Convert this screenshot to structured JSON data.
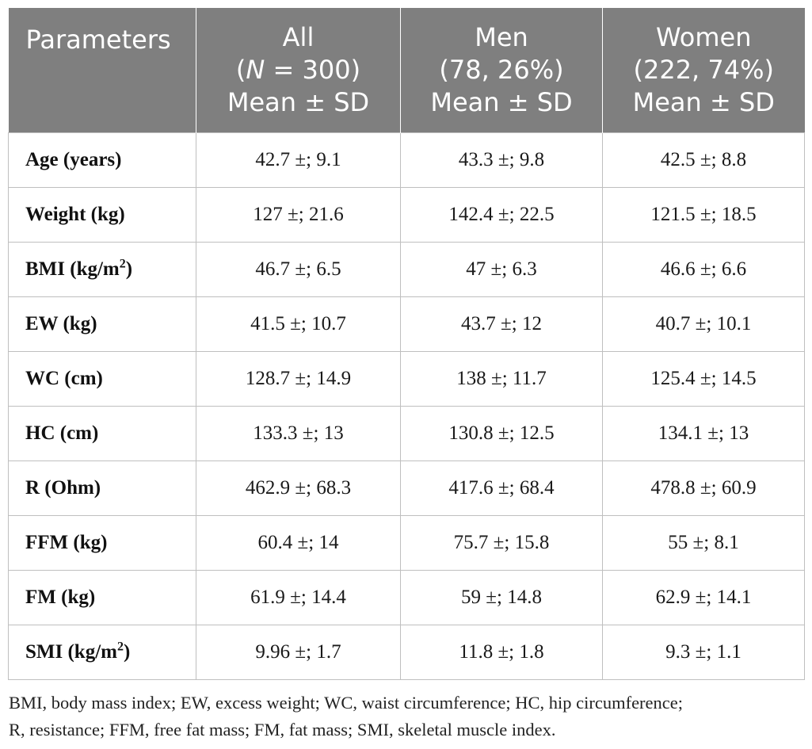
{
  "table": {
    "header": {
      "parameters": "Parameters",
      "all": {
        "line1": "All",
        "line2_prefix": "(",
        "line2_n": "N",
        "line2_rest": " = 300)",
        "line3": "Mean ± SD"
      },
      "men": {
        "line1": "Men",
        "line2": "(78, 26%)",
        "line3": "Mean ± SD"
      },
      "women": {
        "line1": "Women",
        "line2": "(222, 74%)",
        "line3": "Mean ± SD"
      }
    },
    "rows": [
      {
        "label": "Age (years)",
        "sup": "",
        "label_after": "",
        "all": "42.7 ±; 9.1",
        "men": "43.3 ±; 9.8",
        "women": "42.5 ±; 8.8"
      },
      {
        "label": "Weight (kg)",
        "sup": "",
        "label_after": "",
        "all": "127 ±; 21.6",
        "men": "142.4 ±; 22.5",
        "women": "121.5 ±; 18.5"
      },
      {
        "label": "BMI (kg/m",
        "sup": "2",
        "label_after": ")",
        "all": "46.7 ±; 6.5",
        "men": "47 ±; 6.3",
        "women": "46.6 ±; 6.6"
      },
      {
        "label": "EW (kg)",
        "sup": "",
        "label_after": "",
        "all": "41.5 ±; 10.7",
        "men": "43.7 ±; 12",
        "women": "40.7 ±; 10.1"
      },
      {
        "label": "WC (cm)",
        "sup": "",
        "label_after": "",
        "all": "128.7 ±; 14.9",
        "men": "138 ±; 11.7",
        "women": "125.4 ±; 14.5"
      },
      {
        "label": "HC (cm)",
        "sup": "",
        "label_after": "",
        "all": "133.3 ±; 13",
        "men": "130.8 ±; 12.5",
        "women": "134.1 ±; 13"
      },
      {
        "label": "R (Ohm)",
        "sup": "",
        "label_after": "",
        "all": "462.9 ±; 68.3",
        "men": "417.6 ±; 68.4",
        "women": "478.8 ±; 60.9"
      },
      {
        "label": "FFM (kg)",
        "sup": "",
        "label_after": "",
        "all": "60.4 ±; 14",
        "men": "75.7 ±; 15.8",
        "women": "55 ±; 8.1"
      },
      {
        "label": "FM (kg)",
        "sup": "",
        "label_after": "",
        "all": "61.9 ±; 14.4",
        "men": "59 ±; 14.8",
        "women": "62.9 ±; 14.1"
      },
      {
        "label": "SMI (kg/m",
        "sup": "2",
        "label_after": ")",
        "all": "9.96 ±; 1.7",
        "men": "11.8 ±; 1.8",
        "women": "9.3 ±; 1.1"
      }
    ]
  },
  "footnote": {
    "line1": "BMI, body mass index; EW, excess weight; WC, waist circumference; HC, hip circumference;",
    "line2": "R, resistance; FFM, free fat mass; FM, fat mass; SMI, skeletal muscle index."
  },
  "colors": {
    "header_bg": "#7f7f7f",
    "header_text": "#ffffff",
    "border": "#bfbfbf"
  }
}
